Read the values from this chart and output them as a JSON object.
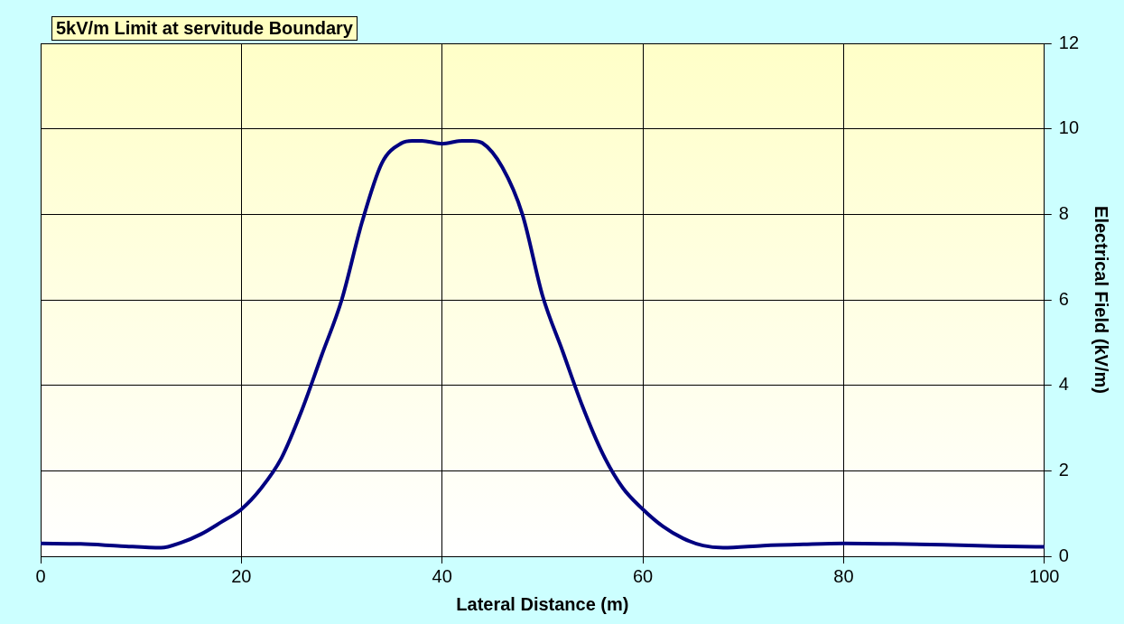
{
  "chart_data": {
    "type": "line",
    "title": "5kV/m Limit at servitude Boundary",
    "xlabel": "Lateral Distance (m)",
    "ylabel": "Electrical Field (kV/m)",
    "x": [
      0,
      4,
      8,
      12,
      14,
      16,
      18,
      20,
      22,
      24,
      26,
      28,
      30,
      32,
      34,
      36,
      37,
      38,
      40,
      42,
      43,
      44,
      46,
      48,
      50,
      52,
      54,
      56,
      58,
      60,
      62,
      64,
      66,
      68,
      72,
      76,
      80,
      85,
      90,
      95,
      100
    ],
    "series": [
      {
        "color": "#000080",
        "values": [
          0.3,
          0.29,
          0.24,
          0.2,
          0.32,
          0.52,
          0.8,
          1.1,
          1.6,
          2.3,
          3.4,
          4.7,
          6.0,
          7.8,
          9.2,
          9.67,
          9.72,
          9.72,
          9.65,
          9.72,
          9.72,
          9.67,
          9.1,
          8.0,
          6.1,
          4.8,
          3.5,
          2.4,
          1.6,
          1.1,
          0.7,
          0.42,
          0.25,
          0.2,
          0.25,
          0.28,
          0.3,
          0.29,
          0.27,
          0.24,
          0.22
        ]
      }
    ],
    "xlim": [
      0,
      100
    ],
    "xticks": [
      0,
      20,
      40,
      60,
      80,
      100
    ],
    "ylim": [
      0,
      12
    ],
    "yticks": [
      0,
      2,
      4,
      6,
      8,
      10,
      12
    ],
    "grid": true,
    "legend": false,
    "marker": "none",
    "line_style": "solid"
  }
}
